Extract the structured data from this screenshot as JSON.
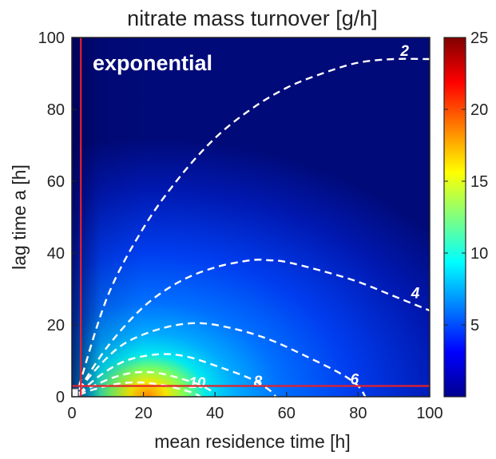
{
  "chart_data": {
    "type": "heatmap",
    "title": "nitrate mass turnover [g/h]",
    "xlabel": "mean residence time [h]",
    "ylabel": "lag time a [h]",
    "xlim": [
      0,
      100
    ],
    "ylim": [
      0,
      100
    ],
    "xticks": [
      "0",
      "20",
      "40",
      "60",
      "80",
      "100"
    ],
    "yticks": [
      "0",
      "20",
      "40",
      "60",
      "80",
      "100"
    ],
    "annotation": "exponential",
    "colormap": "jet",
    "colorbar": {
      "range": [
        0,
        25
      ],
      "ticks": [
        "5",
        "10",
        "15",
        "20",
        "25"
      ]
    },
    "contours": [
      {
        "level": "2",
        "label_x": 93,
        "label_y": 96.5,
        "points": [
          [
            2,
            3
          ],
          [
            10,
            28
          ],
          [
            20,
            47
          ],
          [
            30,
            61
          ],
          [
            40,
            72
          ],
          [
            50,
            80
          ],
          [
            60,
            86
          ],
          [
            70,
            90
          ],
          [
            80,
            93
          ],
          [
            90,
            94
          ],
          [
            100,
            94
          ]
        ]
      },
      {
        "level": "4",
        "label_x": 96,
        "label_y": 29,
        "points": [
          [
            2,
            2
          ],
          [
            10,
            14
          ],
          [
            20,
            25
          ],
          [
            30,
            32
          ],
          [
            40,
            36
          ],
          [
            50,
            38
          ],
          [
            55,
            38
          ],
          [
            60,
            37.5
          ],
          [
            70,
            35
          ],
          [
            80,
            32
          ],
          [
            90,
            28
          ],
          [
            100,
            24
          ]
        ]
      },
      {
        "level": "6",
        "label_x": 79,
        "label_y": 5,
        "points": [
          [
            2,
            2
          ],
          [
            8,
            9
          ],
          [
            15,
            15
          ],
          [
            25,
            19
          ],
          [
            35,
            20.5
          ],
          [
            45,
            19
          ],
          [
            55,
            16
          ],
          [
            65,
            11.5
          ],
          [
            75,
            6.5
          ],
          [
            80,
            3
          ],
          [
            82,
            0
          ]
        ]
      },
      {
        "level": "8",
        "label_x": 52,
        "label_y": 4.5,
        "points": [
          [
            2,
            1
          ],
          [
            8,
            6
          ],
          [
            15,
            10
          ],
          [
            24,
            11.8
          ],
          [
            32,
            11.2
          ],
          [
            42,
            8
          ],
          [
            50,
            5
          ],
          [
            55,
            2
          ],
          [
            57,
            0
          ]
        ]
      },
      {
        "level": "10",
        "label_x": 35,
        "label_y": 4,
        "points": [
          [
            2,
            1
          ],
          [
            6,
            3
          ],
          [
            12,
            5.5
          ],
          [
            18,
            6.8
          ],
          [
            24,
            6.6
          ],
          [
            30,
            5.2
          ],
          [
            36,
            3.2
          ],
          [
            40,
            1
          ]
        ]
      },
      {
        "level": "",
        "label_x": 0,
        "label_y": 0,
        "points": [
          [
            2,
            0.5
          ],
          [
            6,
            2
          ],
          [
            12,
            3.5
          ],
          [
            18,
            4
          ],
          [
            24,
            3.5
          ],
          [
            30,
            2.2
          ],
          [
            34,
            1
          ],
          [
            36,
            0
          ]
        ]
      }
    ],
    "highlight_lines": {
      "color": "#e5202a",
      "vertical_x": 2.5,
      "horizontal_y": 3
    },
    "grid": false,
    "legend": "none"
  }
}
